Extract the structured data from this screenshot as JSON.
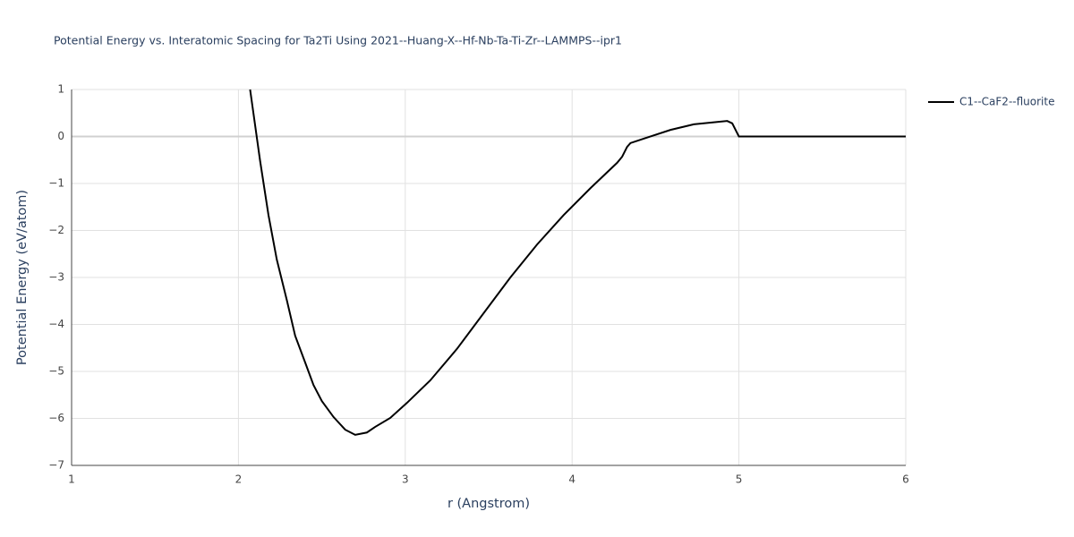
{
  "chart_data": {
    "type": "line",
    "title": "Potential Energy vs. Interatomic Spacing for Ta2Ti Using 2021--Huang-X--Hf-Nb-Ta-Ti-Zr--LAMMPS--ipr1",
    "x_label": "r (Angstrom)",
    "y_label": "Potential Energy (eV/atom)",
    "x": [
      2.07,
      2.13,
      2.18,
      2.23,
      2.29,
      2.34,
      2.4,
      2.45,
      2.5,
      2.57,
      2.64,
      2.7,
      2.77,
      2.82,
      2.91,
      3.01,
      3.15,
      3.31,
      3.47,
      3.63,
      3.79,
      3.95,
      4.11,
      4.27,
      4.3,
      4.33,
      4.35,
      4.46,
      4.59,
      4.73,
      4.93,
      4.96,
      5.0,
      6.0
    ],
    "series": [
      {
        "name": "C1--CaF2--fluorite",
        "color": "#000000",
        "values": [
          1,
          -0.52,
          -1.67,
          -2.62,
          -3.48,
          -4.24,
          -4.81,
          -5.29,
          -5.63,
          -5.97,
          -6.24,
          -6.35,
          -6.3,
          -6.18,
          -5.99,
          -5.67,
          -5.19,
          -4.52,
          -3.76,
          -3.0,
          -2.3,
          -1.67,
          -1.1,
          -0.56,
          -0.43,
          -0.22,
          -0.14,
          -0.01,
          0.14,
          0.26,
          0.33,
          0.28,
          0,
          0
        ]
      }
    ],
    "xlim": [
      1,
      6
    ],
    "xticks": [
      1,
      2,
      3,
      4,
      5,
      6
    ],
    "ylim": [
      -7,
      1
    ],
    "yticks": [
      1,
      0,
      {
        "value": -1,
        "label": "−1"
      },
      {
        "value": -2,
        "label": "−2"
      },
      {
        "value": -3,
        "label": "−3"
      },
      {
        "value": -4,
        "label": "−4"
      },
      {
        "value": -5,
        "label": "−5"
      },
      {
        "value": -6,
        "label": "−6"
      },
      {
        "value": -7,
        "label": "−7"
      }
    ],
    "grid": true
  }
}
